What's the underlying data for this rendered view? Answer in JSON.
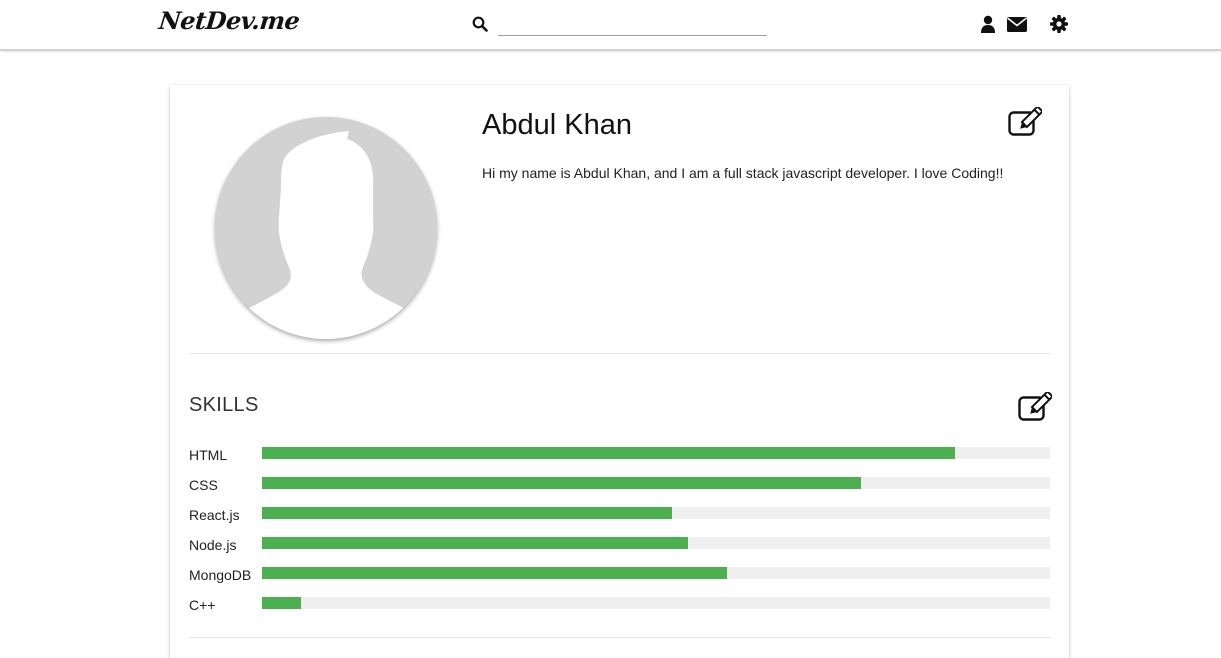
{
  "navbar": {
    "logo": "NetDev.me",
    "search": {
      "value": "",
      "placeholder": ""
    },
    "icons": [
      "search-icon",
      "user-icon",
      "mail-icon",
      "gear-icon"
    ]
  },
  "profile": {
    "name": "Abdul Khan",
    "bio": "Hi my name is Abdul Khan, and I am a full stack javascript developer. I love Coding!!"
  },
  "skills": {
    "title": "SKILLS",
    "items": [
      {
        "label": "HTML",
        "level": 0.88
      },
      {
        "label": "CSS",
        "level": 0.76
      },
      {
        "label": "React.js",
        "level": 0.52
      },
      {
        "label": "Node.js",
        "level": 0.54
      },
      {
        "label": "MongoDB",
        "level": 0.59
      },
      {
        "label": "C++",
        "level": 0.05
      }
    ]
  },
  "colors": {
    "accent": "#4caf50",
    "track": "#efefef",
    "avatar_bg": "#d2d2d2",
    "avatar_silhouette": "#ffffff"
  }
}
